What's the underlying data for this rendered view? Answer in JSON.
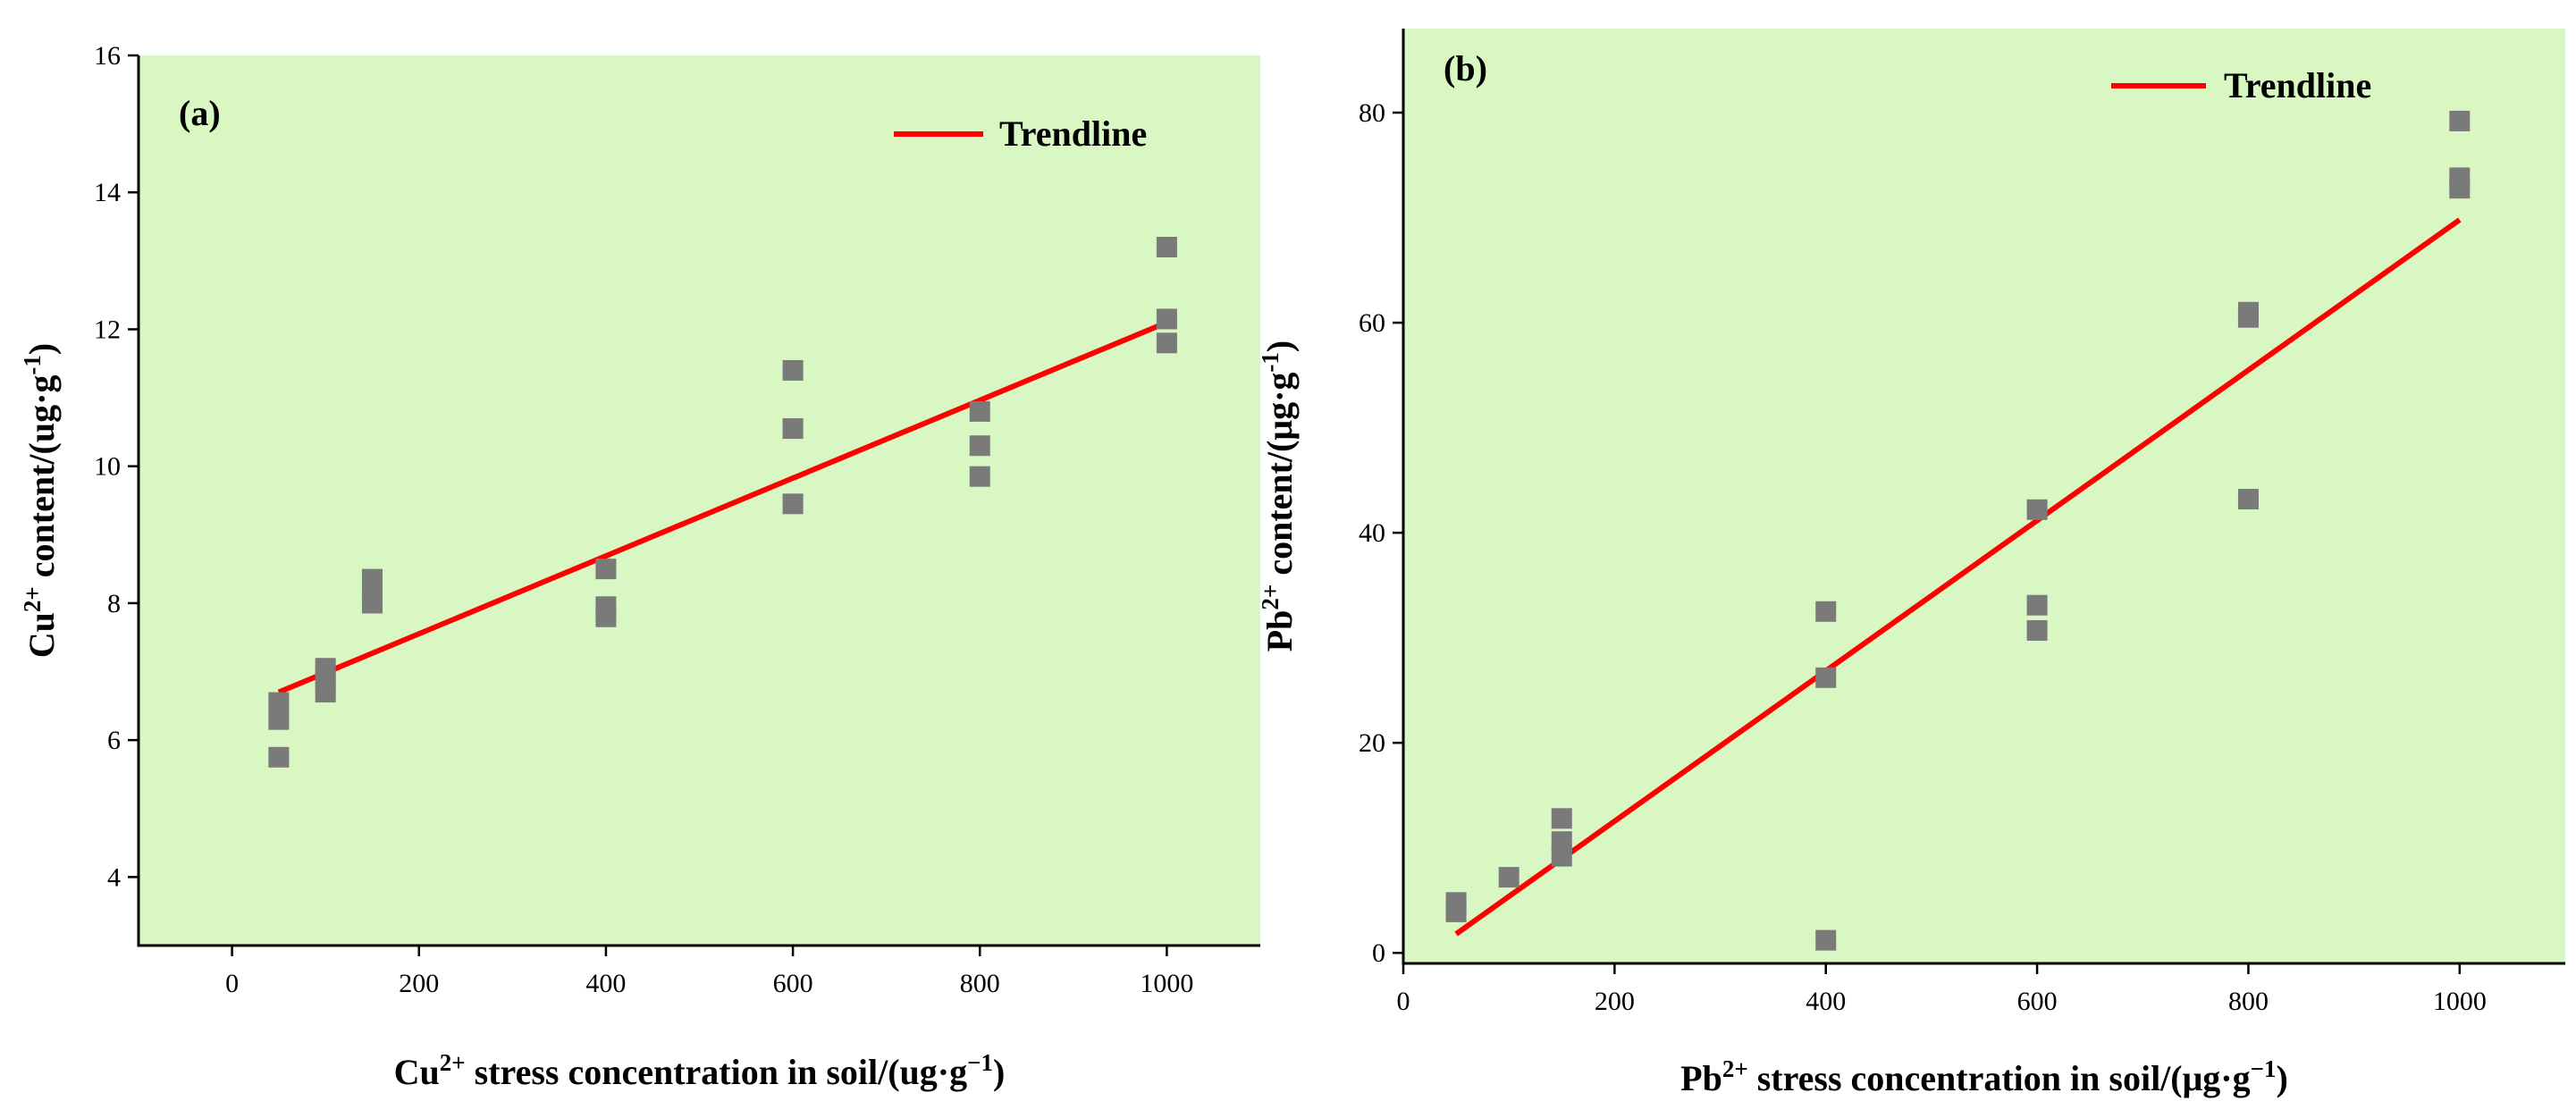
{
  "chart_data": [
    {
      "type": "scatter",
      "panel_label": "(a)",
      "x": [
        50,
        50,
        50,
        100,
        100,
        100,
        150,
        150,
        150,
        400,
        400,
        400,
        600,
        600,
        600,
        800,
        800,
        800,
        1000,
        1000,
        1000
      ],
      "y": [
        6.55,
        6.3,
        5.75,
        7.05,
        6.9,
        6.7,
        8.35,
        8.15,
        8.0,
        8.5,
        7.95,
        7.8,
        11.4,
        10.55,
        9.45,
        10.8,
        10.3,
        9.85,
        13.2,
        12.15,
        11.8
      ],
      "trendline": {
        "name": "Trendline",
        "x": [
          50,
          1000
        ],
        "y": [
          6.7,
          12.1
        ]
      },
      "xlim": [
        -100,
        1100
      ],
      "ylim": [
        3,
        16
      ],
      "xticks": [
        0,
        200,
        400,
        600,
        800,
        1000
      ],
      "yticks": [
        4,
        6,
        8,
        10,
        12,
        14,
        16
      ],
      "xlabel": {
        "main": "Cu",
        "sup": "2+",
        "rest": " stress concentration in soil/(ug·g",
        "sup2": "−1",
        "end": ")"
      },
      "ylabel": {
        "main": "Cu",
        "sup": "2+",
        "rest": " content/(ug·g",
        "sup2": "-1",
        "end": ")"
      },
      "legend": {
        "label": "Trendline",
        "position": "top-right"
      },
      "colors": {
        "background": "#d8f7c2",
        "marker": "#7a7a7a",
        "trend": "#ff0000"
      }
    },
    {
      "type": "scatter",
      "panel_label": "(b)",
      "x": [
        50,
        50,
        100,
        150,
        150,
        150,
        400,
        400,
        400,
        600,
        600,
        600,
        800,
        800,
        800,
        1000,
        1000,
        1000
      ],
      "y": [
        4.8,
        3.9,
        7.2,
        12.8,
        10.6,
        9.2,
        32.5,
        26.2,
        1.2,
        42.2,
        33.1,
        30.7,
        61.0,
        60.5,
        43.2,
        79.2,
        73.8,
        72.8
      ],
      "trendline": {
        "name": "Trendline",
        "x": [
          50,
          1000
        ],
        "y": [
          1.8,
          69.8
        ]
      },
      "xlim": [
        0,
        1100
      ],
      "ylim": [
        -1,
        88
      ],
      "xticks": [
        0,
        200,
        400,
        600,
        800,
        1000
      ],
      "yticks": [
        0,
        20,
        40,
        60,
        80
      ],
      "xlabel": {
        "main": "Pb",
        "sup": "2+",
        "rest": " stress concentration in soil/(μg·g",
        "sup2": "−1",
        "end": ")"
      },
      "ylabel": {
        "main": "Pb",
        "sup": "2+",
        "rest": " content/(μg·g",
        "sup2": "-1",
        "end": ")"
      },
      "legend": {
        "label": "Trendline",
        "position": "top-right"
      },
      "colors": {
        "background": "#d8f7c2",
        "marker": "#7a7a7a",
        "trend": "#ff0000"
      }
    }
  ]
}
